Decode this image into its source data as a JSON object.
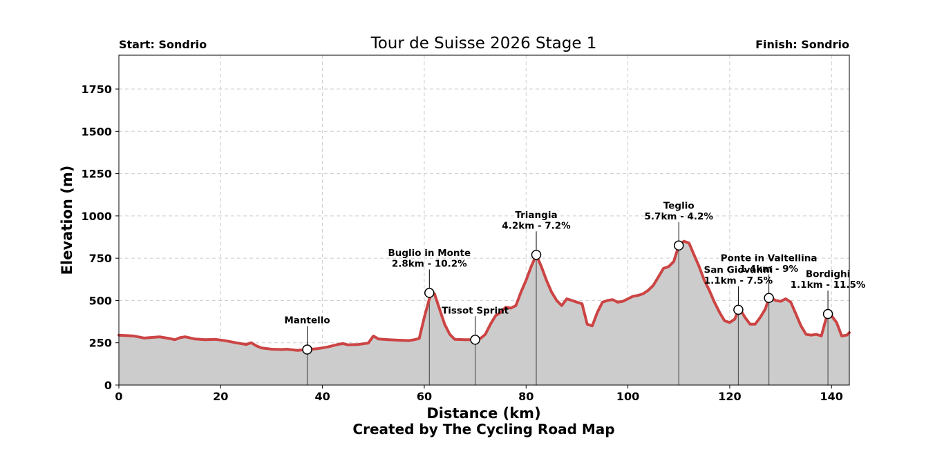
{
  "chart_data": {
    "type": "area",
    "title": "Tour de Suisse 2026 Stage 1",
    "start_label": "Start: Sondrio",
    "finish_label": "Finish: Sondrio",
    "xlabel": "Distance (km)",
    "ylabel": "Elevation (m)",
    "credit": "Created by The Cycling Road Map",
    "xlim": [
      0,
      143.5
    ],
    "ylim": [
      0,
      1950
    ],
    "xticks": [
      0,
      20,
      40,
      60,
      80,
      100,
      120,
      140
    ],
    "yticks": [
      0,
      250,
      500,
      750,
      1000,
      1250,
      1500,
      1750
    ],
    "grid": true,
    "line_color": "#cc4444",
    "fill_color": "#cccccc",
    "profile": [
      [
        0,
        295
      ],
      [
        3,
        290
      ],
      [
        5,
        278
      ],
      [
        8,
        285
      ],
      [
        10,
        275
      ],
      [
        11,
        268
      ],
      [
        12,
        280
      ],
      [
        13,
        285
      ],
      [
        15,
        272
      ],
      [
        17,
        268
      ],
      [
        19,
        270
      ],
      [
        21,
        262
      ],
      [
        23,
        250
      ],
      [
        25,
        240
      ],
      [
        26,
        250
      ],
      [
        27,
        232
      ],
      [
        28,
        220
      ],
      [
        30,
        212
      ],
      [
        32,
        210
      ],
      [
        33,
        212
      ],
      [
        35,
        205
      ],
      [
        37,
        210
      ],
      [
        39,
        215
      ],
      [
        41,
        225
      ],
      [
        43,
        240
      ],
      [
        44,
        245
      ],
      [
        45,
        238
      ],
      [
        47,
        240
      ],
      [
        49,
        248
      ],
      [
        50,
        290
      ],
      [
        51,
        272
      ],
      [
        53,
        268
      ],
      [
        55,
        265
      ],
      [
        57,
        263
      ],
      [
        58,
        268
      ],
      [
        59,
        275
      ],
      [
        60,
        400
      ],
      [
        61,
        510
      ],
      [
        61.5,
        545
      ],
      [
        62,
        540
      ],
      [
        63,
        450
      ],
      [
        64,
        360
      ],
      [
        65,
        300
      ],
      [
        66,
        270
      ],
      [
        68,
        268
      ],
      [
        70,
        268
      ],
      [
        71,
        275
      ],
      [
        72,
        300
      ],
      [
        73,
        360
      ],
      [
        74,
        410
      ],
      [
        75,
        430
      ],
      [
        76,
        460
      ],
      [
        77,
        455
      ],
      [
        78,
        470
      ],
      [
        79,
        550
      ],
      [
        80,
        620
      ],
      [
        81,
        700
      ],
      [
        82,
        770
      ],
      [
        83,
        700
      ],
      [
        84,
        620
      ],
      [
        85,
        550
      ],
      [
        86,
        500
      ],
      [
        87,
        470
      ],
      [
        88,
        510
      ],
      [
        89,
        500
      ],
      [
        90,
        490
      ],
      [
        91,
        480
      ],
      [
        92,
        360
      ],
      [
        93,
        350
      ],
      [
        94,
        430
      ],
      [
        95,
        490
      ],
      [
        96,
        500
      ],
      [
        97,
        505
      ],
      [
        98,
        490
      ],
      [
        99,
        495
      ],
      [
        100,
        510
      ],
      [
        101,
        525
      ],
      [
        102,
        530
      ],
      [
        103,
        540
      ],
      [
        104,
        560
      ],
      [
        105,
        590
      ],
      [
        106,
        640
      ],
      [
        107,
        690
      ],
      [
        108,
        700
      ],
      [
        109,
        730
      ],
      [
        110,
        825
      ],
      [
        111,
        850
      ],
      [
        112,
        840
      ],
      [
        113,
        770
      ],
      [
        114,
        700
      ],
      [
        115,
        620
      ],
      [
        116,
        560
      ],
      [
        117,
        490
      ],
      [
        118,
        430
      ],
      [
        119,
        380
      ],
      [
        120,
        370
      ],
      [
        121,
        390
      ],
      [
        121.7,
        445
      ],
      [
        122,
        450
      ],
      [
        123,
        400
      ],
      [
        124,
        360
      ],
      [
        125,
        360
      ],
      [
        126,
        400
      ],
      [
        127,
        450
      ],
      [
        127.7,
        515
      ],
      [
        128,
        520
      ],
      [
        129,
        500
      ],
      [
        130,
        495
      ],
      [
        131,
        510
      ],
      [
        132,
        490
      ],
      [
        133,
        420
      ],
      [
        134,
        350
      ],
      [
        135,
        300
      ],
      [
        136,
        295
      ],
      [
        137,
        300
      ],
      [
        138,
        290
      ],
      [
        139,
        400
      ],
      [
        139.5,
        420
      ],
      [
        140,
        410
      ],
      [
        141,
        370
      ],
      [
        142,
        290
      ],
      [
        143,
        295
      ],
      [
        143.5,
        310
      ]
    ],
    "annotations": [
      {
        "km": 37.0,
        "elev": 210,
        "lines": [
          "Mantello"
        ]
      },
      {
        "km": 61.0,
        "elev": 545,
        "lines": [
          "Buglio in Monte",
          "2.8km - 10.2%"
        ]
      },
      {
        "km": 70.0,
        "elev": 268,
        "lines": [
          "Tissot Sprint"
        ]
      },
      {
        "km": 82.0,
        "elev": 770,
        "lines": [
          "Triangia",
          "4.2km - 7.2%"
        ]
      },
      {
        "km": 110.0,
        "elev": 825,
        "lines": [
          "Teglio",
          "5.7km - 4.2%"
        ]
      },
      {
        "km": 121.7,
        "elev": 445,
        "lines": [
          "San Giovanni",
          "1.1km - 7.5%"
        ]
      },
      {
        "km": 127.7,
        "elev": 515,
        "lines": [
          "Ponte in Valtellina",
          "1.4km - 9%"
        ]
      },
      {
        "km": 139.3,
        "elev": 420,
        "lines": [
          "Bordighi",
          "1.1km - 11.5%"
        ]
      }
    ]
  }
}
